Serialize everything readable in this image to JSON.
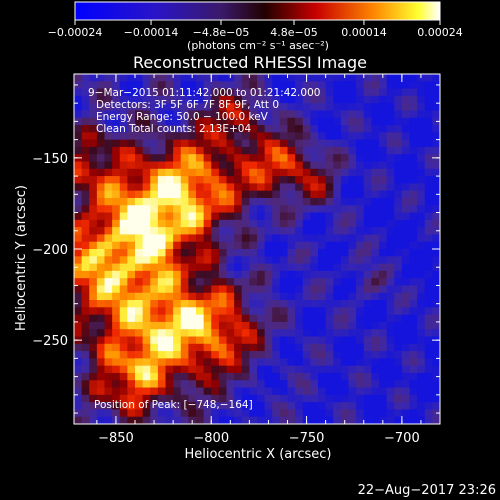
{
  "chart_data": {
    "type": "heatmap",
    "title": "Reconstructed RHESSI Image",
    "xlabel": "Heliocentric X (arcsec)",
    "ylabel": "Heliocentric Y (arcsec)",
    "xlim": [
      -872,
      -680
    ],
    "ylim": [
      -296,
      -104
    ],
    "x_ticks": [
      -850,
      -800,
      -750,
      -700
    ],
    "y_ticks": [
      -250,
      -200,
      -150
    ],
    "x_tick_labels": [
      "−850",
      "−800",
      "−750",
      "−700"
    ],
    "y_tick_labels": [
      "−250",
      "−200",
      "−150"
    ],
    "colorbar": {
      "min": -0.00024,
      "max": 0.00024,
      "ticks": [
        -0.00024,
        -0.00014,
        -4.8e-05,
        4.8e-05,
        0.00014,
        0.00024
      ],
      "tick_labels": [
        "−0.00024",
        "−0.00014",
        "−4.8e−05",
        "4.8e−05",
        "0.00014",
        "0.00024"
      ],
      "units_label": "(photons cm⁻² s⁻¹ asec⁻²)",
      "colormap": "blue-purple-red-yellow-white"
    },
    "annotations": [
      "9−Mar−2015 01:11:42.000 to 01:21:42.000",
      "Detectors: 3F 5F 6F 7F 8F 9F, Att 0",
      "Energy Range: 50.0 − 100.0 keV",
      "Clean    Total counts: 2.13E+04"
    ],
    "peak_label": "Position of Peak: [−748,−164]",
    "peak": [
      -748,
      -164
    ]
  },
  "footer": {
    "timestamp": "22−Aug−2017 23:26"
  }
}
